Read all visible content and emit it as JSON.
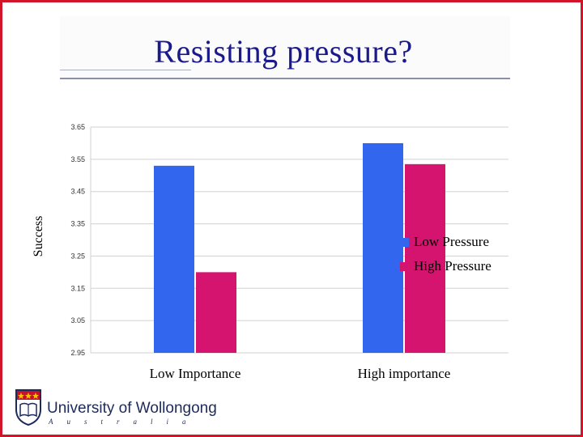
{
  "slide": {
    "title": "Resisting pressure?"
  },
  "chart_data": {
    "type": "bar",
    "title": "Resisting pressure?",
    "xlabel": "",
    "ylabel": "Success",
    "ylim": [
      2.95,
      3.65
    ],
    "yticks": [
      "2.95",
      "3.05",
      "3.15",
      "3.25",
      "3.35",
      "3.45",
      "3.55",
      "3.65"
    ],
    "categories": [
      "Low Importance",
      "High importance"
    ],
    "series": [
      {
        "name": "Low Pressure",
        "values": [
          3.53,
          3.6
        ],
        "color": "#3366ee"
      },
      {
        "name": "High Pressure",
        "values": [
          3.2,
          3.535
        ],
        "color": "#d4146e"
      }
    ],
    "grid": true,
    "legend": "right"
  },
  "footer": {
    "university_name": "University of Wollongong",
    "country": "Australia"
  }
}
